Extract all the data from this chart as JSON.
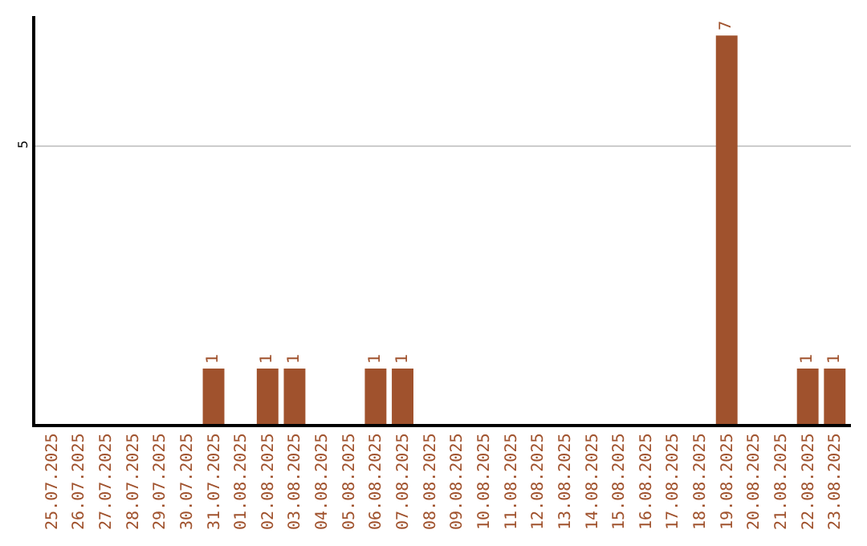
{
  "chart_data": {
    "type": "bar",
    "categories": [
      "25.07.2025",
      "26.07.2025",
      "27.07.2025",
      "28.07.2025",
      "29.07.2025",
      "30.07.2025",
      "31.07.2025",
      "01.08.2025",
      "02.08.2025",
      "03.08.2025",
      "04.08.2025",
      "05.08.2025",
      "06.08.2025",
      "07.08.2025",
      "08.08.2025",
      "09.08.2025",
      "10.08.2025",
      "11.08.2025",
      "12.08.2025",
      "13.08.2025",
      "14.08.2025",
      "15.08.2025",
      "16.08.2025",
      "17.08.2025",
      "18.08.2025",
      "19.08.2025",
      "20.08.2025",
      "21.08.2025",
      "22.08.2025",
      "23.08.2025"
    ],
    "values": [
      0,
      0,
      0,
      0,
      0,
      0,
      1,
      0,
      1,
      1,
      0,
      0,
      1,
      1,
      0,
      0,
      0,
      0,
      0,
      0,
      0,
      0,
      0,
      0,
      0,
      7,
      0,
      0,
      1,
      1
    ],
    "value_labels": [
      null,
      null,
      null,
      null,
      null,
      null,
      "1",
      null,
      "1",
      "1",
      null,
      null,
      "1",
      "1",
      null,
      null,
      null,
      null,
      null,
      null,
      null,
      null,
      null,
      null,
      null,
      "7",
      null,
      null,
      "1",
      "1"
    ],
    "color": "#a0522d",
    "ylim": [
      0,
      7.35
    ],
    "yticks": [
      5
    ],
    "grid": "y",
    "legend": false
  }
}
